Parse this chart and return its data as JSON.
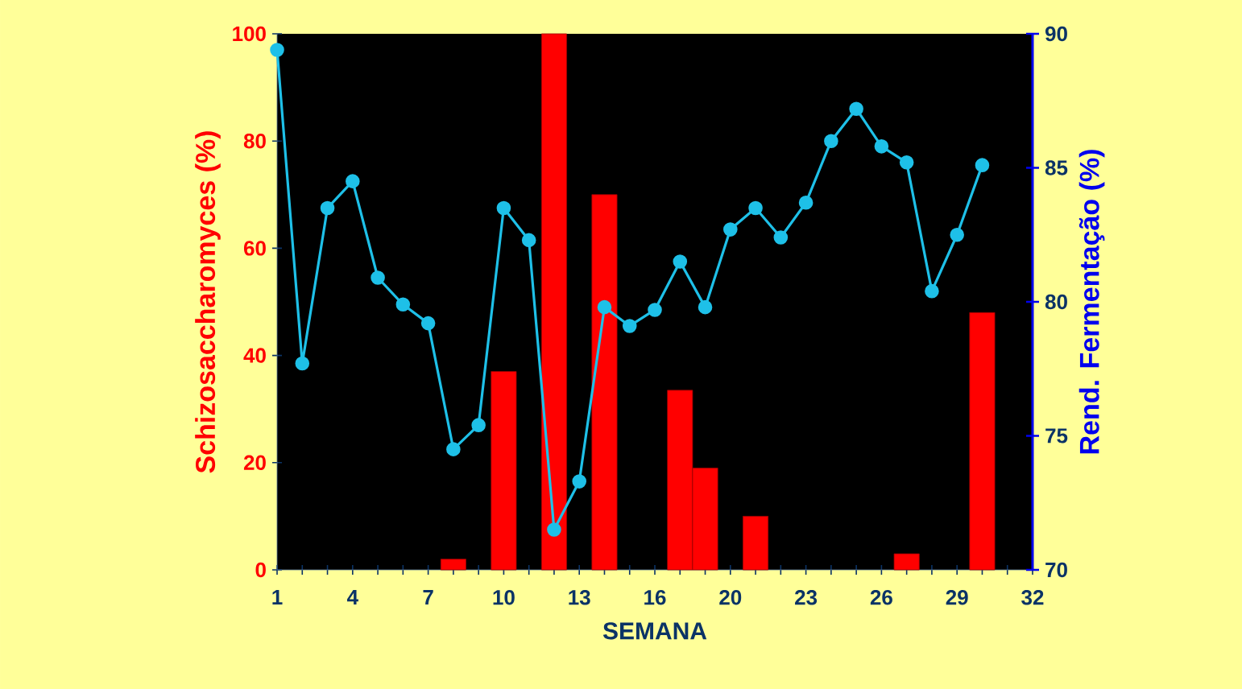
{
  "chart_data": {
    "type": "bar",
    "xlabel": "SEMANA",
    "ylabel": "Schizosaccharomyces (%)",
    "y2label": "Rend. Fermentação (%)",
    "categories": [
      "1",
      null,
      null,
      "4",
      null,
      null,
      "7",
      null,
      null,
      "10",
      null,
      null,
      "13",
      null,
      null,
      "16",
      null,
      null,
      "20",
      null,
      null,
      "23",
      null,
      null,
      "26",
      null,
      null,
      "29",
      null,
      null,
      "32"
    ],
    "ylim": [
      0,
      100
    ],
    "yticks": [
      0,
      20,
      40,
      60,
      80,
      100
    ],
    "y2lim": [
      70,
      90
    ],
    "y2ticks": [
      70,
      75,
      80,
      85,
      90
    ],
    "grid": false,
    "series": [
      {
        "color": "#ff0000",
        "values": [
          null,
          null,
          null,
          null,
          null,
          null,
          null,
          2,
          null,
          37,
          null,
          100,
          null,
          70,
          null,
          null,
          33.5,
          19,
          null,
          10,
          null,
          null,
          null,
          null,
          null,
          3,
          null,
          null,
          48,
          null,
          null
        ]
      },
      {
        "type": "line",
        "axis": "y2",
        "color": "#1ec0e8",
        "marker": "circle",
        "line_style": "solid",
        "values": [
          89.4,
          77.7,
          83.5,
          84.5,
          80.9,
          79.9,
          79.2,
          74.5,
          75.4,
          83.5,
          82.3,
          71.5,
          73.3,
          79.8,
          79.1,
          79.7,
          81.5,
          79.8,
          82.7,
          83.5,
          82.4,
          83.7,
          86.0,
          87.2,
          85.8,
          85.2,
          80.4,
          82.5,
          85.1,
          null,
          null
        ]
      }
    ]
  }
}
